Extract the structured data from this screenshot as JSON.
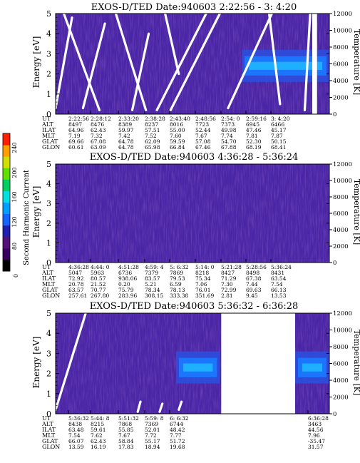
{
  "colorbar": {
    "label": "Second Harmonic Current",
    "ticks": [
      "0",
      "80",
      "120",
      "160",
      "200",
      "240"
    ],
    "colors": [
      "#000000",
      "#3a0060",
      "#55107a",
      "#2020b0",
      "#1565ff",
      "#00a0ff",
      "#00e0e0",
      "#00d060",
      "#60e000",
      "#d0e000",
      "#ffa000",
      "#ff2000"
    ]
  },
  "chart_data": [
    {
      "type": "heatmap",
      "title": "EXOS-D/TED   Date:940603  2:22:56 - 3: 4:20",
      "ylabel": "Energy [eV]",
      "y2label": "Temperature [K]",
      "ylim": [
        0,
        5
      ],
      "yticks": [
        "0",
        "1",
        "2",
        "3",
        "4",
        "5"
      ],
      "y2lim": [
        0,
        12000
      ],
      "y2ticks": [
        "0",
        "2000",
        "4000",
        "6000",
        "8000",
        "10000",
        "12000"
      ],
      "background_color": "#4a26a6",
      "gaps": [
        [
          0.9375,
          0.955
        ]
      ],
      "enhancement": {
        "from": 0.68,
        "to": 1.0,
        "center_y": 2.4,
        "width_y": 0.8,
        "color": "#1a78ff"
      },
      "white_lines": [
        [
          [
            0.0,
            0.3
          ],
          [
            0.06,
            4.8
          ]
        ],
        [
          [
            0.03,
            5.0
          ],
          [
            0.16,
            0.2
          ]
        ],
        [
          [
            0.1,
            0.3
          ],
          [
            0.18,
            4.5
          ]
        ],
        [
          [
            0.22,
            5.0
          ],
          [
            0.33,
            0.2
          ]
        ],
        [
          [
            0.28,
            0.2
          ],
          [
            0.34,
            4.0
          ]
        ],
        [
          [
            0.4,
            5.0
          ],
          [
            0.45,
            2.0
          ]
        ],
        [
          [
            0.37,
            0.2
          ],
          [
            0.55,
            5.0
          ]
        ],
        [
          [
            0.42,
            0.2
          ],
          [
            0.6,
            5.0
          ]
        ],
        [
          [
            0.63,
            0.3
          ],
          [
            0.79,
            5.0
          ]
        ],
        [
          [
            0.78,
            5.0
          ],
          [
            0.82,
            0.5
          ]
        ],
        [
          [
            0.91,
            0.2
          ],
          [
            0.93,
            5.0
          ]
        ]
      ],
      "table": {
        "labels": [
          "UT",
          "ALT",
          "ILAT",
          "MLT",
          "GLAT",
          "GLON"
        ],
        "columns": [
          [
            "2:22:56",
            "8497",
            "64.96",
            "7.19",
            "69.66",
            "60.61"
          ],
          [
            "2:28:12",
            "8476",
            "62.43",
            "7.32",
            "67.08",
            "63.09"
          ],
          [
            "2:33:20",
            "8389",
            "59.97",
            "7.42",
            "64.78",
            "64.78"
          ],
          [
            "2:38:28",
            "8237",
            "57.51",
            "7.52",
            "62.09",
            "65.98"
          ],
          [
            "2:43:40",
            "8016",
            "55.00",
            "7.60",
            "59.59",
            "66.84"
          ],
          [
            "2:48:56",
            "7723",
            "52.44",
            "7.67",
            "57.08",
            "67.46"
          ],
          [
            "2:54: 0",
            "7373",
            "49.98",
            "7.74",
            "54.70",
            "67.88"
          ],
          [
            "2:59:16",
            "6945",
            "47.46",
            "7.81",
            "52.30",
            "68.19"
          ],
          [
            "3: 4:20",
            "6466",
            "45.17",
            "7.87",
            "50.15",
            "68.41"
          ]
        ]
      }
    },
    {
      "type": "heatmap",
      "title": "EXOS-D/TED   Date:940603  4:36:28 - 5:36:24",
      "ylabel": "Energy [eV]",
      "y2label": "Temperature [K]",
      "ylim": [
        0,
        5
      ],
      "yticks": [
        "0",
        "1",
        "2",
        "3",
        "4",
        "5"
      ],
      "y2lim": [
        0,
        12000
      ],
      "y2ticks": [
        "0",
        "2000",
        "4000",
        "6000",
        "8000",
        "10000",
        "12000"
      ],
      "background_color": "#4a26a6",
      "gaps": [],
      "enhancement": null,
      "white_lines": [],
      "table": {
        "labels": [
          "UT",
          "ALT",
          "ILAT",
          "MLT",
          "GLAT",
          "GLON"
        ],
        "columns": [
          [
            "4:36:28",
            "5047",
            "72.92",
            "20.78",
            "63.57",
            "257.61"
          ],
          [
            "4:44: 0",
            "5963",
            "80.57",
            "21.52",
            "70.77",
            "267.80"
          ],
          [
            "4:51:28",
            "6736",
            "938.06",
            "0.20",
            "75.79",
            "283.96"
          ],
          [
            "4:59: 4",
            "7379",
            "83.57",
            "5.21",
            "78.34",
            "308.15"
          ],
          [
            "5: 6:32",
            "7869",
            "79.53",
            "6.59",
            "78.13",
            "333.38"
          ],
          [
            "5:14: 0",
            "8218",
            "75.34",
            "7.06",
            "76.01",
            "351.69"
          ],
          [
            "5:21:28",
            "8427",
            "71.29",
            "7.30",
            "72.99",
            "2.81"
          ],
          [
            "5:28:56",
            "8498",
            "67.38",
            "7.44",
            "69.63",
            "9.45"
          ],
          [
            "5:36:24",
            "8431",
            "63.54",
            "7.54",
            "66.13",
            "13.53"
          ]
        ]
      }
    },
    {
      "type": "heatmap",
      "title": "EXOS-D/TED   Date:940603  5:36:32 - 6:36:28",
      "ylabel": "Energy [eV]",
      "y2label": "Temperature [K]",
      "ylim": [
        0,
        5
      ],
      "yticks": [
        "0",
        "1",
        "2",
        "3",
        "4",
        "5"
      ],
      "y2lim": [
        0,
        12000
      ],
      "y2ticks": [
        "0",
        "2000",
        "4000",
        "6000",
        "8000",
        "10000",
        "12000"
      ],
      "background_color": "#4a26a6",
      "gaps": [
        [
          0.605,
          0.875
        ]
      ],
      "enhancement": {
        "from": 0.44,
        "to": 0.6,
        "center_y": 2.3,
        "width_y": 0.8,
        "color": "#1a78ff",
        "from2": 0.875,
        "to2": 1.0
      },
      "white_lines": [
        [
          [
            0.0,
            0.2
          ],
          [
            0.11,
            5.0
          ]
        ],
        [
          [
            0.3,
            0.1
          ],
          [
            0.31,
            0.6
          ]
        ],
        [
          [
            0.38,
            0.1
          ],
          [
            0.39,
            0.5
          ]
        ],
        [
          [
            0.45,
            0.2
          ],
          [
            0.46,
            0.6
          ]
        ]
      ],
      "table": {
        "labels": [
          "UT",
          "ALT",
          "ILAT",
          "MLT",
          "GLAT",
          "GLON"
        ],
        "columns": [
          [
            "5:36:32",
            "8438",
            "63.48",
            "7.54",
            "66.07",
            "13.59"
          ],
          [
            "5:44: 8",
            "8215",
            "59.61",
            "7.62",
            "62.43",
            "16.19"
          ],
          [
            "5:51:32",
            "7868",
            "55.85",
            "7.67",
            "58.84",
            "17.83"
          ],
          [
            "5:59: 8",
            "7369",
            "52.01",
            "7.72",
            "55.17",
            "18.94"
          ],
          [
            "6: 6:32",
            "6744",
            "48.42",
            "7.77",
            "51.72",
            "19.68"
          ],
          [
            "6:36:28",
            "3463",
            "44.56",
            "7.96",
            "-35.47",
            "31.57"
          ]
        ]
      }
    }
  ]
}
